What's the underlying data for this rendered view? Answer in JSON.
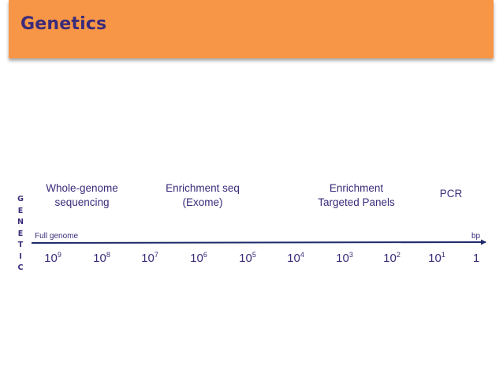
{
  "header": {
    "title": "Genetics",
    "banner_color": "#f79646",
    "title_color": "#3b2b7a"
  },
  "side_label": [
    "G",
    "E",
    "N",
    "E",
    "T",
    "I",
    "C"
  ],
  "categories": [
    {
      "label": "Whole-genome\nsequencing"
    },
    {
      "label": "Enrichment seq\n(Exome)"
    },
    {
      "label": "Enrichment\nTargeted Panels"
    },
    {
      "label": "PCR"
    }
  ],
  "axis": {
    "start_label": "Full genome",
    "end_label": "bp",
    "ticks": [
      {
        "base": "10",
        "exp": "9"
      },
      {
        "base": "10",
        "exp": "8"
      },
      {
        "base": "10",
        "exp": "7"
      },
      {
        "base": "10",
        "exp": "6"
      },
      {
        "base": "10",
        "exp": "5"
      },
      {
        "base": "10",
        "exp": "4"
      },
      {
        "base": "10",
        "exp": "3"
      },
      {
        "base": "10",
        "exp": "2"
      },
      {
        "base": "10",
        "exp": "1"
      },
      {
        "base": "1",
        "exp": ""
      }
    ]
  }
}
